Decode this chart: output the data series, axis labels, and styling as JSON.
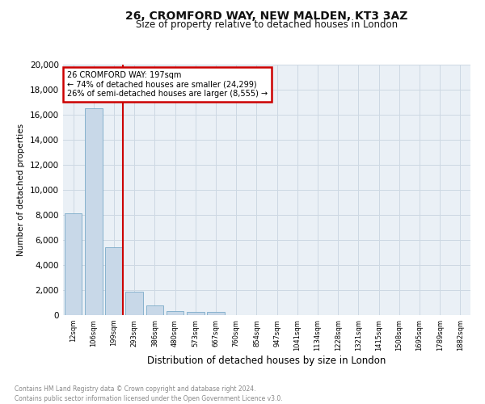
{
  "title1": "26, CROMFORD WAY, NEW MALDEN, KT3 3AZ",
  "title2": "Size of property relative to detached houses in London",
  "xlabel": "Distribution of detached houses by size in London",
  "ylabel": "Number of detached properties",
  "footnote1": "Contains HM Land Registry data © Crown copyright and database right 2024.",
  "footnote2": "Contains public sector information licensed under the Open Government Licence v3.0.",
  "annotation_line1": "26 CROMFORD WAY: 197sqm",
  "annotation_line2": "← 74% of detached houses are smaller (24,299)",
  "annotation_line3": "26% of semi-detached houses are larger (8,555) →",
  "bar_values": [
    8100,
    16500,
    5400,
    1850,
    780,
    350,
    270,
    240,
    0,
    0,
    0,
    0,
    0,
    0,
    0,
    0,
    0,
    0,
    0,
    0
  ],
  "categories": [
    "12sqm",
    "106sqm",
    "199sqm",
    "293sqm",
    "386sqm",
    "480sqm",
    "573sqm",
    "667sqm",
    "760sqm",
    "854sqm",
    "947sqm",
    "1041sqm",
    "1134sqm",
    "1228sqm",
    "1321sqm",
    "1415sqm",
    "1508sqm",
    "1695sqm",
    "1789sqm",
    "1882sqm"
  ],
  "bar_color": "#c8d8e8",
  "bar_edge_color": "#7aaac8",
  "vline_color": "#cc0000",
  "vline_x_idx": 2,
  "annotation_box_color": "#cc0000",
  "grid_color": "#cdd8e3",
  "background_color": "#eaf0f6",
  "ylim": [
    0,
    20000
  ],
  "yticks": [
    0,
    2000,
    4000,
    6000,
    8000,
    10000,
    12000,
    14000,
    16000,
    18000,
    20000
  ]
}
